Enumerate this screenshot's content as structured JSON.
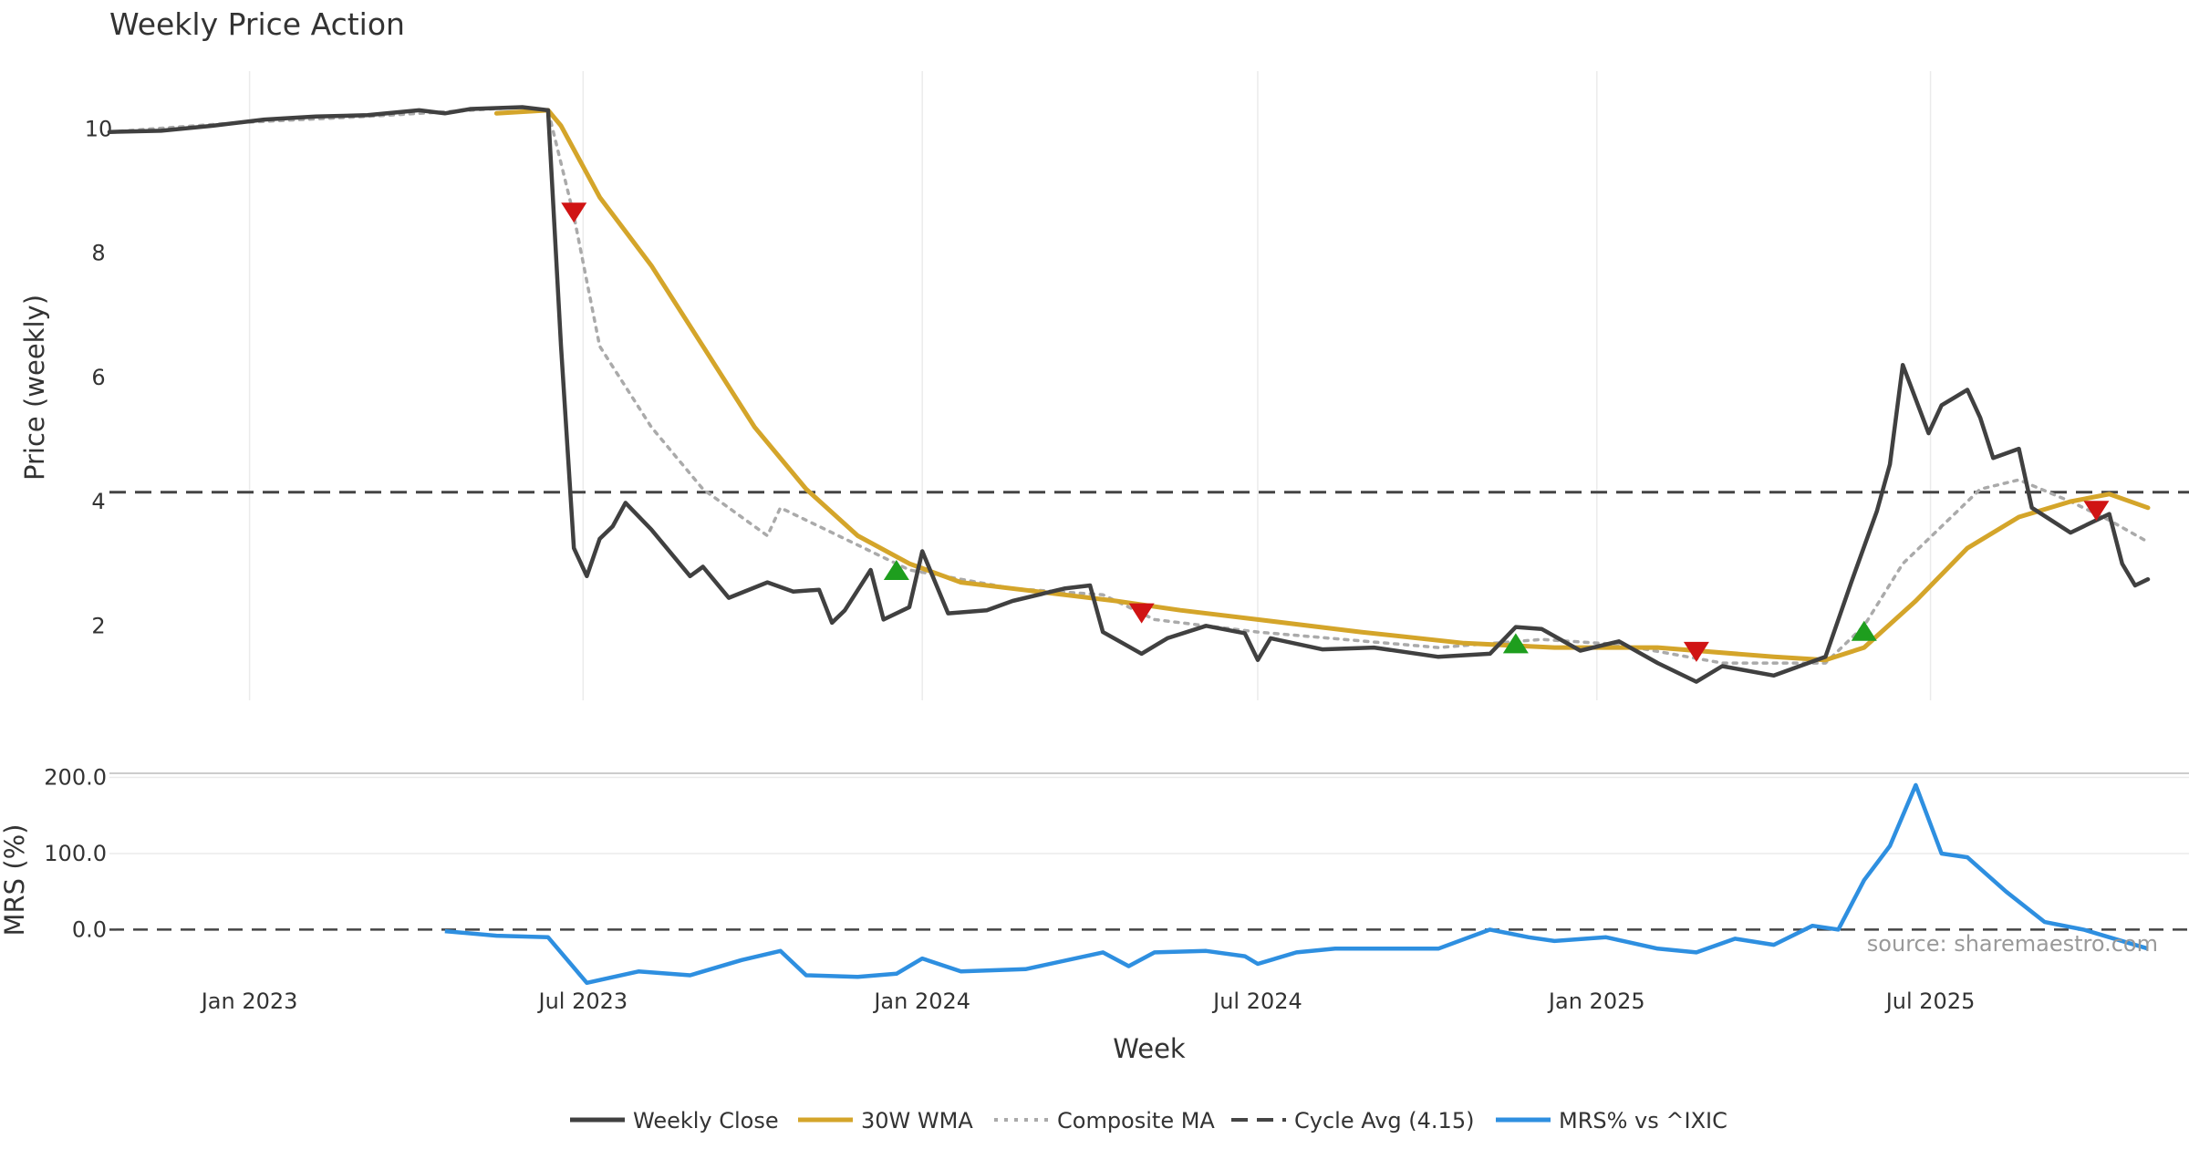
{
  "chart_data": [
    {
      "type": "line",
      "title": "Weekly Price Action",
      "xlabel": "Week",
      "ylabel": "Price (weekly)",
      "ylim": [
        0.8,
        10.9
      ],
      "yticks": [
        2,
        4,
        6,
        8,
        10
      ],
      "x_range": [
        "2022-10-17",
        "2025-10-27"
      ],
      "xtick_dates": [
        "2023-01-01",
        "2023-07-01",
        "2024-01-01",
        "2024-07-01",
        "2025-01-01",
        "2025-07-01"
      ],
      "xtick_labels": [
        "Jan 2023",
        "Jul 2023",
        "Jan 2024",
        "Jul 2024",
        "Jan 2025",
        "Jul 2025"
      ],
      "grid": true,
      "reference_line": {
        "name": "Cycle Avg (4.15)",
        "value": 4.15
      },
      "series": [
        {
          "name": "Weekly Close",
          "color": "#404040",
          "points": [
            [
              "2022-10-17",
              9.95
            ],
            [
              "2022-11-14",
              9.97
            ],
            [
              "2022-12-12",
              10.05
            ],
            [
              "2023-01-09",
              10.15
            ],
            [
              "2023-02-06",
              10.2
            ],
            [
              "2023-03-06",
              10.22
            ],
            [
              "2023-04-03",
              10.3
            ],
            [
              "2023-04-17",
              10.25
            ],
            [
              "2023-05-01",
              10.32
            ],
            [
              "2023-05-29",
              10.35
            ],
            [
              "2023-06-12",
              10.3
            ],
            [
              "2023-06-19",
              6.5
            ],
            [
              "2023-06-26",
              3.25
            ],
            [
              "2023-07-03",
              2.8
            ],
            [
              "2023-07-10",
              3.4
            ],
            [
              "2023-07-17",
              3.6
            ],
            [
              "2023-07-24",
              3.98
            ],
            [
              "2023-08-07",
              3.55
            ],
            [
              "2023-08-28",
              2.8
            ],
            [
              "2023-09-04",
              2.95
            ],
            [
              "2023-09-18",
              2.45
            ],
            [
              "2023-10-09",
              2.7
            ],
            [
              "2023-10-23",
              2.55
            ],
            [
              "2023-11-06",
              2.58
            ],
            [
              "2023-11-13",
              2.05
            ],
            [
              "2023-11-20",
              2.25
            ],
            [
              "2023-12-04",
              2.9
            ],
            [
              "2023-12-11",
              2.1
            ],
            [
              "2023-12-25",
              2.3
            ],
            [
              "2024-01-01",
              3.2
            ],
            [
              "2024-01-15",
              2.2
            ],
            [
              "2024-02-05",
              2.25
            ],
            [
              "2024-02-19",
              2.4
            ],
            [
              "2024-03-18",
              2.6
            ],
            [
              "2024-04-01",
              2.65
            ],
            [
              "2024-04-08",
              1.9
            ],
            [
              "2024-04-29",
              1.55
            ],
            [
              "2024-05-13",
              1.8
            ],
            [
              "2024-06-03",
              2.0
            ],
            [
              "2024-06-24",
              1.88
            ],
            [
              "2024-07-01",
              1.45
            ],
            [
              "2024-07-08",
              1.8
            ],
            [
              "2024-08-05",
              1.62
            ],
            [
              "2024-09-02",
              1.65
            ],
            [
              "2024-10-07",
              1.5
            ],
            [
              "2024-11-04",
              1.55
            ],
            [
              "2024-11-18",
              1.98
            ],
            [
              "2024-12-02",
              1.95
            ],
            [
              "2024-12-23",
              1.6
            ],
            [
              "2025-01-13",
              1.75
            ],
            [
              "2025-02-03",
              1.4
            ],
            [
              "2025-02-24",
              1.1
            ],
            [
              "2025-03-10",
              1.35
            ],
            [
              "2025-04-07",
              1.2
            ],
            [
              "2025-05-05",
              1.5
            ],
            [
              "2025-05-19",
              2.7
            ],
            [
              "2025-06-02",
              3.85
            ],
            [
              "2025-06-09",
              4.6
            ],
            [
              "2025-06-16",
              6.2
            ],
            [
              "2025-06-30",
              5.1
            ],
            [
              "2025-07-07",
              5.55
            ],
            [
              "2025-07-21",
              5.8
            ],
            [
              "2025-07-28",
              5.35
            ],
            [
              "2025-08-04",
              4.7
            ],
            [
              "2025-08-18",
              4.85
            ],
            [
              "2025-08-25",
              3.9
            ],
            [
              "2025-09-15",
              3.5
            ],
            [
              "2025-10-06",
              3.8
            ],
            [
              "2025-10-13",
              3.0
            ],
            [
              "2025-10-20",
              2.65
            ],
            [
              "2025-10-27",
              2.75
            ]
          ]
        },
        {
          "name": "30W WMA",
          "color": "#d4a52a",
          "points": [
            [
              "2023-05-15",
              10.25
            ],
            [
              "2023-06-12",
              10.3
            ],
            [
              "2023-06-19",
              10.05
            ],
            [
              "2023-07-10",
              8.9
            ],
            [
              "2023-08-07",
              7.8
            ],
            [
              "2023-09-04",
              6.5
            ],
            [
              "2023-10-02",
              5.2
            ],
            [
              "2023-10-30",
              4.2
            ],
            [
              "2023-11-27",
              3.45
            ],
            [
              "2023-12-25",
              3.0
            ],
            [
              "2024-01-22",
              2.7
            ],
            [
              "2024-03-04",
              2.55
            ],
            [
              "2024-04-15",
              2.4
            ],
            [
              "2024-05-20",
              2.25
            ],
            [
              "2024-07-01",
              2.1
            ],
            [
              "2024-08-26",
              1.9
            ],
            [
              "2024-10-21",
              1.72
            ],
            [
              "2024-12-09",
              1.65
            ],
            [
              "2025-02-03",
              1.65
            ],
            [
              "2025-04-07",
              1.5
            ],
            [
              "2025-05-05",
              1.45
            ],
            [
              "2025-05-26",
              1.65
            ],
            [
              "2025-06-23",
              2.4
            ],
            [
              "2025-07-21",
              3.25
            ],
            [
              "2025-08-18",
              3.75
            ],
            [
              "2025-09-15",
              4.0
            ],
            [
              "2025-10-06",
              4.12
            ],
            [
              "2025-10-27",
              3.9
            ]
          ]
        },
        {
          "name": "Composite MA",
          "color": "#aaaaaa",
          "style": "dotted",
          "points": [
            [
              "2022-10-17",
              9.95
            ],
            [
              "2022-12-26",
              10.1
            ],
            [
              "2023-03-06",
              10.2
            ],
            [
              "2023-05-29",
              10.35
            ],
            [
              "2023-06-12",
              10.3
            ],
            [
              "2023-06-26",
              8.6
            ],
            [
              "2023-07-10",
              6.5
            ],
            [
              "2023-08-07",
              5.2
            ],
            [
              "2023-09-04",
              4.2
            ],
            [
              "2023-10-09",
              3.45
            ],
            [
              "2023-10-16",
              3.9
            ],
            [
              "2023-11-13",
              3.5
            ],
            [
              "2023-12-25",
              2.9
            ],
            [
              "2024-02-19",
              2.6
            ],
            [
              "2024-04-08",
              2.5
            ],
            [
              "2024-05-06",
              2.1
            ],
            [
              "2024-07-01",
              1.9
            ],
            [
              "2024-10-07",
              1.65
            ],
            [
              "2024-12-02",
              1.78
            ],
            [
              "2025-01-13",
              1.7
            ],
            [
              "2025-03-10",
              1.4
            ],
            [
              "2025-05-05",
              1.4
            ],
            [
              "2025-05-26",
              2.0
            ],
            [
              "2025-06-16",
              3.0
            ],
            [
              "2025-07-07",
              3.6
            ],
            [
              "2025-07-28",
              4.2
            ],
            [
              "2025-08-18",
              4.35
            ],
            [
              "2025-09-15",
              4.0
            ],
            [
              "2025-10-06",
              3.7
            ],
            [
              "2025-10-27",
              3.35
            ]
          ]
        }
      ],
      "signals": [
        {
          "type": "sell",
          "date": "2023-06-26",
          "value": 8.65
        },
        {
          "type": "buy",
          "date": "2023-12-18",
          "value": 2.9
        },
        {
          "type": "sell",
          "date": "2024-04-29",
          "value": 2.2
        },
        {
          "type": "buy",
          "date": "2024-11-18",
          "value": 1.72
        },
        {
          "type": "sell",
          "date": "2025-02-24",
          "value": 1.58
        },
        {
          "type": "buy",
          "date": "2025-05-26",
          "value": 1.92
        },
        {
          "type": "sell",
          "date": "2025-09-29",
          "value": 3.85
        }
      ]
    },
    {
      "type": "line",
      "ylabel": "MRS (%)",
      "ylim": [
        -75,
        215
      ],
      "yticks": [
        0,
        100,
        200
      ],
      "ytick_labels": [
        "0.0",
        "100.0",
        "200.0"
      ],
      "reference_line": {
        "value": 0
      },
      "series": [
        {
          "name": "MRS% vs ^IXIC",
          "color": "#2e8fe0",
          "points": [
            [
              "2023-04-17",
              -2
            ],
            [
              "2023-05-15",
              -8
            ],
            [
              "2023-06-12",
              -10
            ],
            [
              "2023-07-03",
              -70
            ],
            [
              "2023-07-31",
              -55
            ],
            [
              "2023-08-28",
              -60
            ],
            [
              "2023-09-25",
              -40
            ],
            [
              "2023-10-16",
              -28
            ],
            [
              "2023-10-30",
              -60
            ],
            [
              "2023-11-27",
              -62
            ],
            [
              "2023-12-18",
              -58
            ],
            [
              "2024-01-01",
              -38
            ],
            [
              "2024-01-22",
              -55
            ],
            [
              "2024-02-26",
              -52
            ],
            [
              "2024-04-08",
              -30
            ],
            [
              "2024-04-22",
              -48
            ],
            [
              "2024-05-06",
              -30
            ],
            [
              "2024-06-03",
              -28
            ],
            [
              "2024-06-24",
              -35
            ],
            [
              "2024-07-01",
              -45
            ],
            [
              "2024-07-22",
              -30
            ],
            [
              "2024-08-12",
              -25
            ],
            [
              "2024-10-07",
              -25
            ],
            [
              "2024-11-04",
              0
            ],
            [
              "2024-11-25",
              -10
            ],
            [
              "2024-12-09",
              -15
            ],
            [
              "2025-01-06",
              -10
            ],
            [
              "2025-02-03",
              -25
            ],
            [
              "2025-02-24",
              -30
            ],
            [
              "2025-03-17",
              -12
            ],
            [
              "2025-04-07",
              -20
            ],
            [
              "2025-04-28",
              5
            ],
            [
              "2025-05-12",
              0
            ],
            [
              "2025-05-26",
              65
            ],
            [
              "2025-06-09",
              110
            ],
            [
              "2025-06-23",
              190
            ],
            [
              "2025-07-07",
              100
            ],
            [
              "2025-07-21",
              95
            ],
            [
              "2025-08-11",
              50
            ],
            [
              "2025-09-01",
              10
            ],
            [
              "2025-09-22",
              0
            ],
            [
              "2025-10-06",
              -10
            ],
            [
              "2025-10-27",
              -25
            ]
          ]
        }
      ]
    }
  ],
  "legend": {
    "items": [
      {
        "label": "Weekly Close",
        "color": "#404040",
        "style": "solid"
      },
      {
        "label": "30W WMA",
        "color": "#d4a52a",
        "style": "solid"
      },
      {
        "label": "Composite MA",
        "color": "#aaaaaa",
        "style": "dotted"
      },
      {
        "label": "Cycle Avg (4.15)",
        "color": "#444444",
        "style": "dashed"
      },
      {
        "label": "MRS% vs ^IXIC",
        "color": "#2e8fe0",
        "style": "solid"
      }
    ]
  },
  "source_note": "source: sharemaestro.com"
}
